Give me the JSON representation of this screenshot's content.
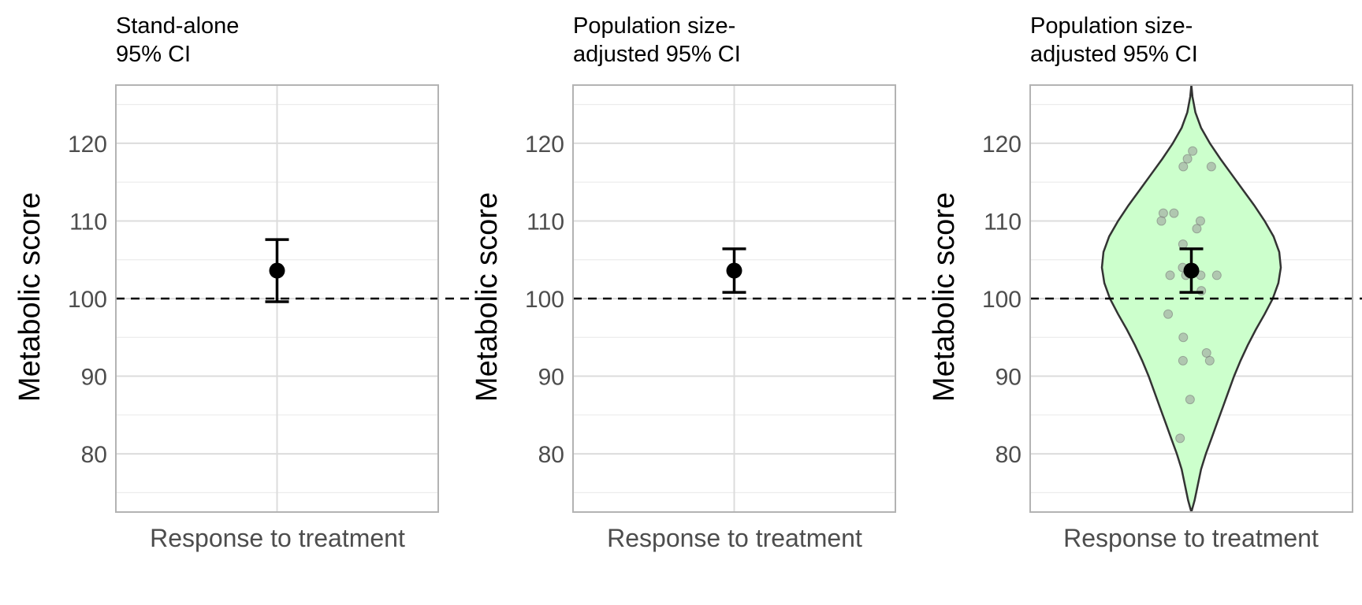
{
  "colors": {
    "panel_border": "#b3b3b3",
    "grid_major": "#dcdcdc",
    "grid_minor": "#ececec",
    "tick_text": "#4d4d4d",
    "title_text": "#000000",
    "point": "#000000",
    "reference_line": "#000000",
    "violin_fill": "#ccffcc",
    "violin_stroke": "#333333",
    "jitter_point": "#999999"
  },
  "chart_data": [
    {
      "type": "errorbar",
      "title": "Stand-alone\n95% CI",
      "xlabel": "Response to treatment",
      "ylabel": "Metabolic score",
      "ylim": [
        72.5,
        127.5
      ],
      "yticks": [
        80,
        90,
        100,
        110,
        120
      ],
      "grid": true,
      "reference_line": 100,
      "point": {
        "x": "Response to treatment",
        "y": 103.6,
        "ci_low": 99.6,
        "ci_high": 107.6
      }
    },
    {
      "type": "errorbar",
      "title": "Population size-\nadjusted 95% CI",
      "xlabel": "Response to treatment",
      "ylabel": "Metabolic score",
      "ylim": [
        72.5,
        127.5
      ],
      "yticks": [
        80,
        90,
        100,
        110,
        120
      ],
      "grid": true,
      "reference_line": 100,
      "point": {
        "x": "Response to treatment",
        "y": 103.6,
        "ci_low": 100.8,
        "ci_high": 106.4
      }
    },
    {
      "type": "violin",
      "title": "Population size-\nadjusted 95% CI",
      "xlabel": "Response to treatment",
      "ylabel": "Metabolic score",
      "ylim": [
        72.5,
        127.5
      ],
      "yticks": [
        80,
        90,
        100,
        110,
        120
      ],
      "grid": true,
      "reference_line": 100,
      "point": {
        "x": "Response to treatment",
        "y": 103.6,
        "ci_low": 100.8,
        "ci_high": 106.4
      },
      "observations": [
        119,
        118,
        117,
        117,
        111,
        111,
        110,
        110,
        109,
        107,
        104,
        103,
        103,
        103,
        103,
        101,
        98,
        95,
        93,
        92,
        92,
        87,
        82
      ],
      "jitter_offsets": [
        0.004,
        -0.012,
        -0.025,
        0.062,
        -0.087,
        -0.054,
        -0.093,
        0.028,
        0.017,
        -0.026,
        -0.027,
        -0.066,
        0.079,
        0.029,
        -0.017,
        0.031,
        -0.072,
        -0.025,
        0.047,
        0.057,
        -0.026,
        -0.004,
        -0.035
      ],
      "violin_profile": [
        [
          72.5,
          0.0
        ],
        [
          74,
          0.02
        ],
        [
          76,
          0.04
        ],
        [
          78,
          0.06
        ],
        [
          80,
          0.09
        ],
        [
          82,
          0.125
        ],
        [
          84,
          0.16
        ],
        [
          86,
          0.195
        ],
        [
          88,
          0.23
        ],
        [
          90,
          0.265
        ],
        [
          92,
          0.305
        ],
        [
          94,
          0.35
        ],
        [
          96,
          0.4
        ],
        [
          98,
          0.455
        ],
        [
          100,
          0.505
        ],
        [
          102,
          0.54
        ],
        [
          104,
          0.555
        ],
        [
          106,
          0.545
        ],
        [
          108,
          0.51
        ],
        [
          110,
          0.455
        ],
        [
          112,
          0.39
        ],
        [
          114,
          0.32
        ],
        [
          116,
          0.25
        ],
        [
          118,
          0.18
        ],
        [
          120,
          0.115
        ],
        [
          122,
          0.06
        ],
        [
          124,
          0.025
        ],
        [
          126,
          0.007
        ],
        [
          127.5,
          0.0
        ]
      ]
    }
  ]
}
